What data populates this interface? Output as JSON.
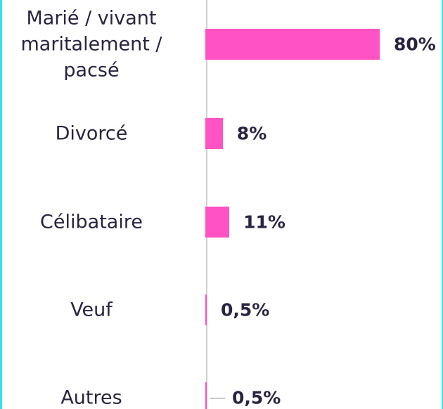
{
  "chart_data": {
    "type": "bar",
    "orientation": "horizontal",
    "categories": [
      "Marié / vivant maritalement / pacsé",
      "Divorcé",
      "Célibataire",
      "Veuf",
      "Autres"
    ],
    "values": [
      80,
      8,
      11,
      0.5,
      0.5
    ],
    "value_labels": [
      "80%",
      "8%",
      "11%",
      "0,5%",
      "0,5%"
    ],
    "color": "#ff52c4"
  }
}
